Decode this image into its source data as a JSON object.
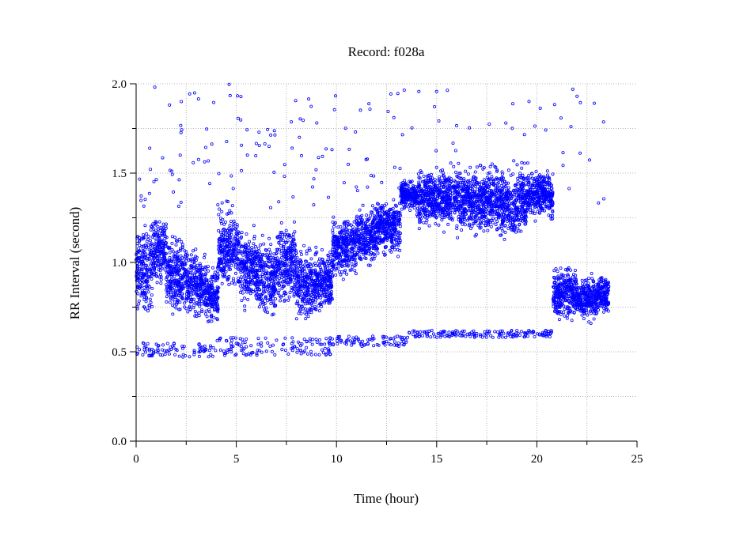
{
  "chart_data": {
    "type": "scatter",
    "title": "Record:  f028a",
    "xlabel": "Time (hour)",
    "ylabel": "RR Interval (second)",
    "xlim": [
      0,
      25
    ],
    "ylim": [
      0,
      2
    ],
    "x_ticks": [
      0,
      5,
      10,
      15,
      20,
      25
    ],
    "x_tick_labels": [
      "0",
      "5",
      "10",
      "15",
      "20",
      "25"
    ],
    "y_ticks": [
      0,
      0.5,
      1.0,
      1.5,
      2.0
    ],
    "y_tick_labels": [
      "0.0",
      "0.5",
      "1.0",
      "1.5",
      "2.0"
    ],
    "grid": true,
    "marker": "open-circle",
    "series_color": "#0000ff",
    "series": [
      {
        "segments": [
          {
            "x": [
              0.0,
              0.8
            ],
            "center": 0.95,
            "spread": 0.25
          },
          {
            "x": [
              0.8,
              1.5
            ],
            "center": 1.07,
            "spread": 0.18
          },
          {
            "x": [
              1.5,
              2.5
            ],
            "center": 0.93,
            "spread": 0.2
          },
          {
            "x": [
              2.5,
              3.5
            ],
            "center": 0.88,
            "spread": 0.18
          },
          {
            "x": [
              3.5,
              4.1
            ],
            "center": 0.82,
            "spread": 0.15
          },
          {
            "x": [
              4.1,
              5.1
            ],
            "center": 1.08,
            "spread": 0.2
          },
          {
            "x": [
              5.1,
              6.0
            ],
            "center": 0.97,
            "spread": 0.2
          },
          {
            "x": [
              6.0,
              7.0
            ],
            "center": 0.92,
            "spread": 0.2
          },
          {
            "x": [
              7.0,
              8.0
            ],
            "center": 1.0,
            "spread": 0.22
          },
          {
            "x": [
              8.0,
              9.0
            ],
            "center": 0.88,
            "spread": 0.2
          },
          {
            "x": [
              9.0,
              9.8
            ],
            "center": 0.9,
            "spread": 0.18
          },
          {
            "x": [
              9.8,
              11.0
            ],
            "center": 1.08,
            "spread": 0.15
          },
          {
            "x": [
              11.0,
              12.0
            ],
            "center": 1.15,
            "spread": 0.15
          },
          {
            "x": [
              12.0,
              13.2
            ],
            "center": 1.2,
            "spread": 0.15
          },
          {
            "x": [
              13.2,
              14.0
            ],
            "center": 1.38,
            "spread": 0.08
          },
          {
            "x": [
              14.0,
              16.0
            ],
            "center": 1.36,
            "spread": 0.16
          },
          {
            "x": [
              16.0,
              18.0
            ],
            "center": 1.35,
            "spread": 0.18
          },
          {
            "x": [
              18.0,
              19.5
            ],
            "center": 1.33,
            "spread": 0.2
          },
          {
            "x": [
              19.5,
              20.8
            ],
            "center": 1.38,
            "spread": 0.12
          },
          {
            "x": [
              20.8,
              22.0
            ],
            "center": 0.83,
            "spread": 0.14
          },
          {
            "x": [
              22.0,
              23.0
            ],
            "center": 0.8,
            "spread": 0.12
          },
          {
            "x": [
              23.0,
              23.6
            ],
            "center": 0.82,
            "spread": 0.1
          }
        ],
        "lower_band": [
          {
            "x": [
              0.0,
              4.0
            ],
            "center": 0.51,
            "spread": 0.04
          },
          {
            "x": [
              4.0,
              10.0
            ],
            "center": 0.53,
            "spread": 0.05
          },
          {
            "x": [
              10.0,
              13.5
            ],
            "center": 0.56,
            "spread": 0.03
          },
          {
            "x": [
              13.5,
              20.8
            ],
            "center": 0.6,
            "spread": 0.02
          }
        ],
        "outlier_range": [
          1.3,
          2.0
        ]
      }
    ]
  }
}
